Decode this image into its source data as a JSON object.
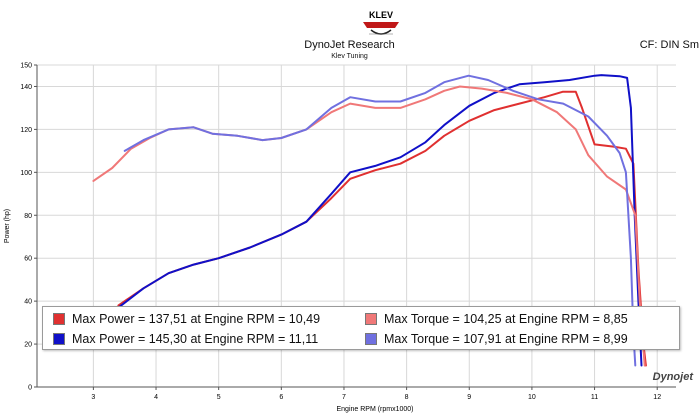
{
  "header": {
    "title": "DynoJet Research",
    "subtitle": "Klev Tuning",
    "cf_label": "CF: DIN Sm",
    "brand_watermark": "Dynojet"
  },
  "colors": {
    "red_power": "#e03030",
    "red_torque": "#f07878",
    "blue_power": "#1010c8",
    "blue_torque": "#7070e0",
    "grid": "#d8d8d8",
    "axis": "#555555"
  },
  "chart_data": {
    "type": "line",
    "title": "",
    "xlabel": "Engine RPM (rpmx1000)",
    "ylabel": "Power (hp)",
    "xlim": [
      2.1,
      12.3
    ],
    "ylim": [
      0,
      150
    ],
    "x_ticks": [
      3,
      4,
      5,
      6,
      7,
      8,
      9,
      10,
      11,
      12
    ],
    "y_ticks": [
      0,
      20,
      40,
      60,
      80,
      100,
      120,
      140,
      150
    ],
    "y_tick_labels": [
      "0",
      "20",
      "40",
      "60",
      "80",
      "100",
      "120",
      "140",
      "150"
    ],
    "grid": true,
    "legend_position": "bottom",
    "series": [
      {
        "id": "power_red",
        "color": "#e03030",
        "width": 2,
        "points": [
          [
            3.4,
            38
          ],
          [
            3.8,
            46
          ],
          [
            4.2,
            53
          ],
          [
            4.6,
            57
          ],
          [
            5.0,
            60
          ],
          [
            5.5,
            65
          ],
          [
            6.0,
            71
          ],
          [
            6.4,
            77
          ],
          [
            6.8,
            88
          ],
          [
            7.1,
            97
          ],
          [
            7.5,
            101
          ],
          [
            7.9,
            104
          ],
          [
            8.3,
            110
          ],
          [
            8.6,
            117
          ],
          [
            9.0,
            124
          ],
          [
            9.4,
            129
          ],
          [
            9.8,
            132
          ],
          [
            10.2,
            135
          ],
          [
            10.49,
            137.5
          ],
          [
            10.7,
            137.5
          ],
          [
            10.8,
            130
          ],
          [
            11.0,
            113
          ],
          [
            11.3,
            112
          ],
          [
            11.5,
            111
          ],
          [
            11.62,
            104
          ],
          [
            11.7,
            55
          ],
          [
            11.78,
            20
          ],
          [
            11.82,
            10
          ]
        ]
      },
      {
        "id": "power_blue",
        "color": "#1010c8",
        "width": 2,
        "points": [
          [
            3.4,
            37
          ],
          [
            3.8,
            46
          ],
          [
            4.2,
            53
          ],
          [
            4.6,
            57
          ],
          [
            5.0,
            60
          ],
          [
            5.5,
            65
          ],
          [
            6.0,
            71
          ],
          [
            6.4,
            77
          ],
          [
            6.8,
            90
          ],
          [
            7.1,
            100
          ],
          [
            7.5,
            103
          ],
          [
            7.9,
            107
          ],
          [
            8.3,
            114
          ],
          [
            8.6,
            122
          ],
          [
            9.0,
            131
          ],
          [
            9.4,
            137
          ],
          [
            9.8,
            141
          ],
          [
            10.2,
            142
          ],
          [
            10.6,
            143
          ],
          [
            11.0,
            145
          ],
          [
            11.11,
            145.3
          ],
          [
            11.4,
            144.8
          ],
          [
            11.52,
            144
          ],
          [
            11.58,
            130
          ],
          [
            11.64,
            80
          ],
          [
            11.7,
            40
          ],
          [
            11.75,
            10
          ]
        ]
      },
      {
        "id": "torque_red",
        "color": "#f07878",
        "width": 2,
        "points": [
          [
            3.0,
            96
          ],
          [
            3.3,
            102
          ],
          [
            3.6,
            111
          ],
          [
            3.9,
            116
          ],
          [
            4.2,
            120
          ],
          [
            4.6,
            121
          ],
          [
            4.9,
            118
          ],
          [
            5.3,
            117
          ],
          [
            5.7,
            115
          ],
          [
            6.0,
            116
          ],
          [
            6.4,
            120
          ],
          [
            6.8,
            128
          ],
          [
            7.1,
            132
          ],
          [
            7.5,
            130
          ],
          [
            7.9,
            130
          ],
          [
            8.3,
            134
          ],
          [
            8.6,
            138
          ],
          [
            8.85,
            140
          ],
          [
            9.2,
            139
          ],
          [
            9.6,
            137
          ],
          [
            10.0,
            134
          ],
          [
            10.4,
            128
          ],
          [
            10.7,
            120
          ],
          [
            10.9,
            108
          ],
          [
            11.2,
            98
          ],
          [
            11.5,
            92
          ],
          [
            11.65,
            80
          ],
          [
            11.72,
            40
          ],
          [
            11.8,
            10
          ]
        ]
      },
      {
        "id": "torque_blue",
        "color": "#7070e0",
        "width": 2,
        "points": [
          [
            3.5,
            110
          ],
          [
            3.8,
            115
          ],
          [
            4.2,
            120
          ],
          [
            4.6,
            121
          ],
          [
            4.9,
            118
          ],
          [
            5.3,
            117
          ],
          [
            5.7,
            115
          ],
          [
            6.0,
            116
          ],
          [
            6.4,
            120
          ],
          [
            6.8,
            130
          ],
          [
            7.1,
            135
          ],
          [
            7.5,
            133
          ],
          [
            7.9,
            133
          ],
          [
            8.3,
            137
          ],
          [
            8.6,
            142
          ],
          [
            8.99,
            145
          ],
          [
            9.3,
            143
          ],
          [
            9.7,
            138
          ],
          [
            10.1,
            134
          ],
          [
            10.5,
            132
          ],
          [
            10.9,
            126
          ],
          [
            11.2,
            117
          ],
          [
            11.4,
            109
          ],
          [
            11.5,
            100
          ],
          [
            11.58,
            60
          ],
          [
            11.62,
            25
          ],
          [
            11.65,
            10
          ]
        ]
      }
    ],
    "legend": [
      {
        "label": "Max Power = 137,51 at Engine RPM = 10,49",
        "color": "#e03030"
      },
      {
        "label": "Max Torque = 104,25 at Engine RPM = 8,85",
        "color": "#f07878"
      },
      {
        "label": "Max Power = 145,30 at Engine RPM = 11,11",
        "color": "#1010c8"
      },
      {
        "label": "Max Torque = 107,91 at Engine RPM = 8,99",
        "color": "#7070e0"
      }
    ]
  }
}
